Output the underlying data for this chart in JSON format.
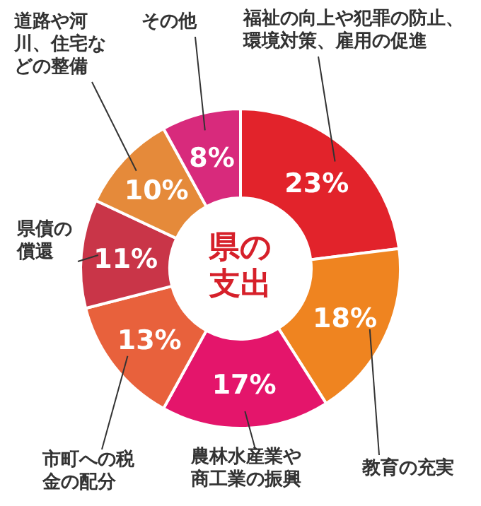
{
  "chart_data": {
    "type": "donut",
    "title": "県の支出",
    "categories": [
      "福祉の向上や犯罪の防止、環境対策、雇用の促進",
      "教育の充実",
      "農林水産業や商工業の振興",
      "市町への税金の配分",
      "県債の償還",
      "道路や河川、住宅などの整備",
      "その他"
    ],
    "values": [
      23,
      18,
      17,
      13,
      11,
      10,
      8
    ],
    "value_labels": [
      "23%",
      "18%",
      "17%",
      "13%",
      "11%",
      "10%",
      "8%"
    ],
    "colors": [
      "#e2232b",
      "#ef8420",
      "#e4156b",
      "#e8613c",
      "#c93548",
      "#e58a3a",
      "#d82a7c"
    ]
  }
}
